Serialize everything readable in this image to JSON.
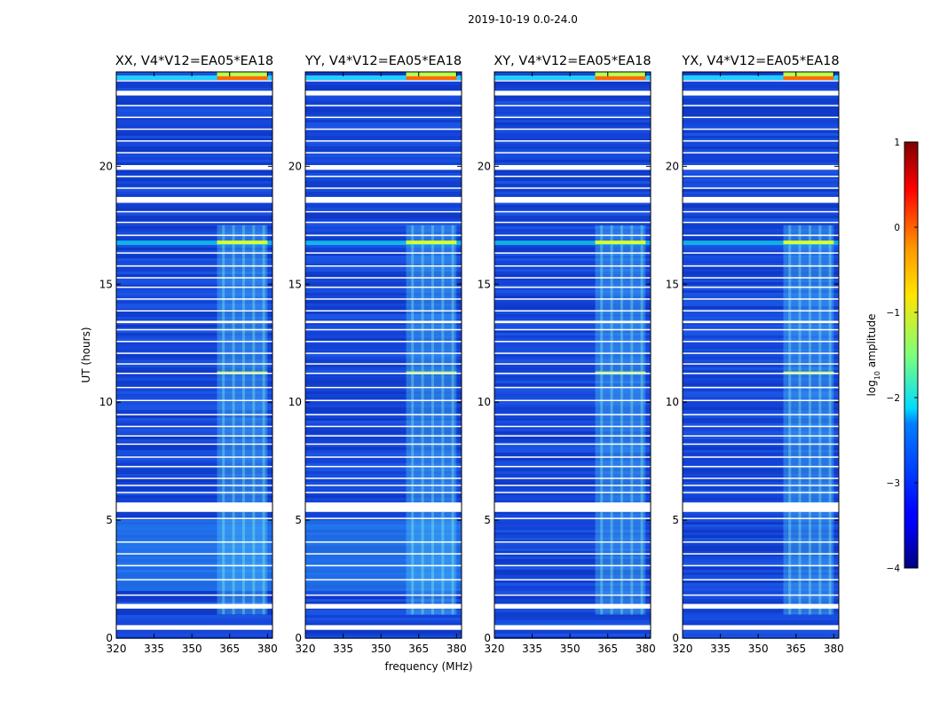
{
  "chart_data": {
    "type": "heatmap",
    "suptitle": "2019-10-19 0.0-24.0",
    "xlabel": "frequency (MHz)",
    "ylabel": "UT (hours)",
    "xlim": [
      320,
      382
    ],
    "ylim": [
      0,
      24
    ],
    "xticks": [
      320,
      335,
      350,
      365,
      380
    ],
    "yticks": [
      0,
      5,
      10,
      15,
      20
    ],
    "panels": [
      {
        "title": "XX, V4*V12=EA05*EA18",
        "pol": "XX"
      },
      {
        "title": "YY, V4*V12=EA05*EA18",
        "pol": "YY"
      },
      {
        "title": "XY, V4*V12=EA05*EA18",
        "pol": "XY"
      },
      {
        "title": "YX, V4*V12=EA05*EA18",
        "pol": "YX"
      }
    ],
    "rfi_band_mhz": [
      360,
      380
    ],
    "colorbar": {
      "label": "log10 amplitude",
      "label_base": "log",
      "label_sub": "10",
      "label_rest": " amplitude",
      "vmin": -4,
      "vmax": 1,
      "ticks": [
        1,
        0,
        -1,
        -2,
        -3,
        -4
      ],
      "tick_labels": [
        "1",
        "0",
        "−1",
        "−2",
        "−3",
        "−4"
      ],
      "colormap": "jet"
    },
    "flagged_time_ranges_hours": [
      [
        0.35,
        0.55
      ],
      [
        1.25,
        1.45
      ],
      [
        1.8,
        1.85
      ],
      [
        2.45,
        2.5
      ],
      [
        3.05,
        3.1
      ],
      [
        3.55,
        3.6
      ],
      [
        4.05,
        4.1
      ],
      [
        5.05,
        5.1
      ],
      [
        5.35,
        5.75
      ],
      [
        6.15,
        6.2
      ],
      [
        6.45,
        6.5
      ],
      [
        6.75,
        6.8
      ],
      [
        7.25,
        7.3
      ],
      [
        7.65,
        7.7
      ],
      [
        8.2,
        8.25
      ],
      [
        8.55,
        8.6
      ],
      [
        8.95,
        9.0
      ],
      [
        9.45,
        9.5
      ],
      [
        10.05,
        10.1
      ],
      [
        10.6,
        10.65
      ],
      [
        11.2,
        11.25
      ],
      [
        11.6,
        11.65
      ],
      [
        12.05,
        12.1
      ],
      [
        12.55,
        12.6
      ],
      [
        13.05,
        13.1
      ],
      [
        13.35,
        13.45
      ],
      [
        13.85,
        13.9
      ],
      [
        14.35,
        14.4
      ],
      [
        14.85,
        14.9
      ],
      [
        15.25,
        15.3
      ],
      [
        15.75,
        15.8
      ],
      [
        16.3,
        16.35
      ],
      [
        17.05,
        17.1
      ],
      [
        17.6,
        17.65
      ],
      [
        18.05,
        18.1
      ],
      [
        18.45,
        18.7
      ],
      [
        19.05,
        19.1
      ],
      [
        19.55,
        19.6
      ],
      [
        19.85,
        20.05
      ],
      [
        20.55,
        20.6
      ],
      [
        21.05,
        21.1
      ],
      [
        21.55,
        21.6
      ],
      [
        22.05,
        22.1
      ],
      [
        22.55,
        22.6
      ],
      [
        23.0,
        23.2
      ],
      [
        23.6,
        23.65
      ]
    ]
  }
}
